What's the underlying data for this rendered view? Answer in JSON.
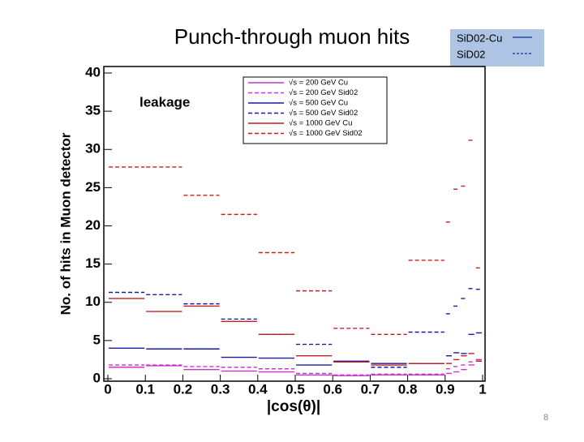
{
  "chart_data": {
    "type": "histogram",
    "title": "Punch-through muon hits",
    "x_label": "|cos(θ)|",
    "y_label": "No. of hits in Muon detector",
    "annotation": "leakage",
    "bins": [
      0,
      0.1,
      0.2,
      0.3,
      0.4,
      0.5,
      0.6,
      0.7,
      0.8,
      0.9,
      0.92,
      0.94,
      0.96,
      0.98,
      1
    ],
    "series": [
      {
        "name": "√s = 200 GeV Cu",
        "color": "#cc33cc",
        "style": "solid",
        "values": [
          1.5,
          1.7,
          1.2,
          1.0,
          0.9,
          0.5,
          0.4,
          0.5,
          0.5,
          0.7,
          0.9,
          1.2,
          1.8,
          2.5
        ]
      },
      {
        "name": "√s = 200 GeV Sid02",
        "color": "#cc33cc",
        "style": "dashed",
        "values": [
          1.8,
          1.8,
          1.6,
          1.5,
          1.3,
          0.7,
          0.5,
          0.6,
          0.6,
          1.3,
          1.6,
          1.8,
          2.2,
          2.5
        ]
      },
      {
        "name": "√s = 500 GeV Cu",
        "color": "#1a1aa0",
        "style": "solid",
        "values": [
          4.0,
          3.9,
          3.9,
          2.8,
          2.7,
          1.8,
          2.3,
          2.0,
          2.0,
          3.0,
          3.4,
          3.3,
          5.8,
          6.0
        ]
      },
      {
        "name": "√s = 500 GeV Sid02",
        "color": "#1a1aa0",
        "style": "dashed",
        "values": [
          11.3,
          11.0,
          9.8,
          7.8,
          5.8,
          4.5,
          2.2,
          1.5,
          6.1,
          8.5,
          9.5,
          10.5,
          11.8,
          11.7
        ]
      },
      {
        "name": "√s = 1000 GeV Cu",
        "color": "#c02020",
        "style": "solid",
        "values": [
          10.5,
          8.8,
          9.5,
          7.5,
          5.8,
          3.0,
          2.2,
          1.8,
          2.0,
          2.0,
          2.5,
          3.0,
          3.3,
          2.3
        ]
      },
      {
        "name": "√s = 1000 GeV Sid02",
        "color": "#c02020",
        "style": "dashed",
        "values": [
          27.7,
          27.7,
          24.0,
          21.5,
          16.5,
          11.5,
          6.6,
          5.8,
          15.5,
          20.5,
          24.8,
          25.2,
          31.2,
          14.5
        ]
      }
    ],
    "xlim": [
      0,
      1
    ],
    "xticks": [
      0,
      0.1,
      0.2,
      0.3,
      0.4,
      0.5,
      0.6,
      0.7,
      0.8,
      0.9,
      1
    ],
    "ylim": [
      0,
      40
    ],
    "yticks": [
      0,
      5,
      10,
      15,
      20,
      25,
      30,
      35,
      40
    ],
    "slide_legend": [
      {
        "name": "SiD02-Cu",
        "style": "solid",
        "color": "#2a4aa0"
      },
      {
        "name": "SiD02",
        "style": "dashed",
        "color": "#2a4aa0"
      }
    ]
  },
  "page_number": "8"
}
